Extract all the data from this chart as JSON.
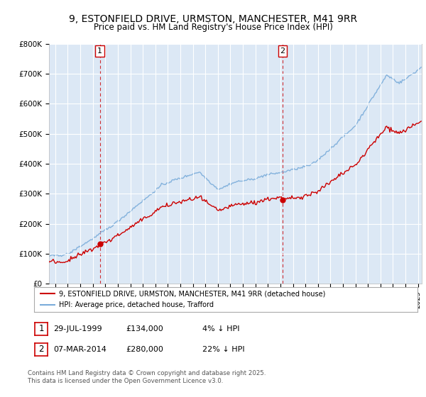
{
  "title": "9, ESTONFIELD DRIVE, URMSTON, MANCHESTER, M41 9RR",
  "subtitle": "Price paid vs. HM Land Registry's House Price Index (HPI)",
  "legend_line1": "9, ESTONFIELD DRIVE, URMSTON, MANCHESTER, M41 9RR (detached house)",
  "legend_line2": "HPI: Average price, detached house, Trafford",
  "footer_line1": "Contains HM Land Registry data © Crown copyright and database right 2025.",
  "footer_line2": "This data is licensed under the Open Government Licence v3.0.",
  "annotation1_date": "29-JUL-1999",
  "annotation1_price": "£134,000",
  "annotation1_hpi": "4% ↓ HPI",
  "annotation2_date": "07-MAR-2014",
  "annotation2_price": "£280,000",
  "annotation2_hpi": "22% ↓ HPI",
  "color_red": "#cc0000",
  "color_blue": "#7aacda",
  "color_vline": "#cc0000",
  "bg_color": "#dce8f5",
  "ylim": [
    0,
    800000
  ],
  "yticks": [
    0,
    100000,
    200000,
    300000,
    400000,
    500000,
    600000,
    700000,
    800000
  ],
  "ytick_labels": [
    "£0",
    "£100K",
    "£200K",
    "£300K",
    "£400K",
    "£500K",
    "£600K",
    "£700K",
    "£800K"
  ],
  "xlim_start": 1995.5,
  "xlim_end": 2025.3,
  "purchase1_x": 1999.57,
  "purchase1_y": 134000,
  "purchase2_x": 2014.18,
  "purchase2_y": 280000
}
